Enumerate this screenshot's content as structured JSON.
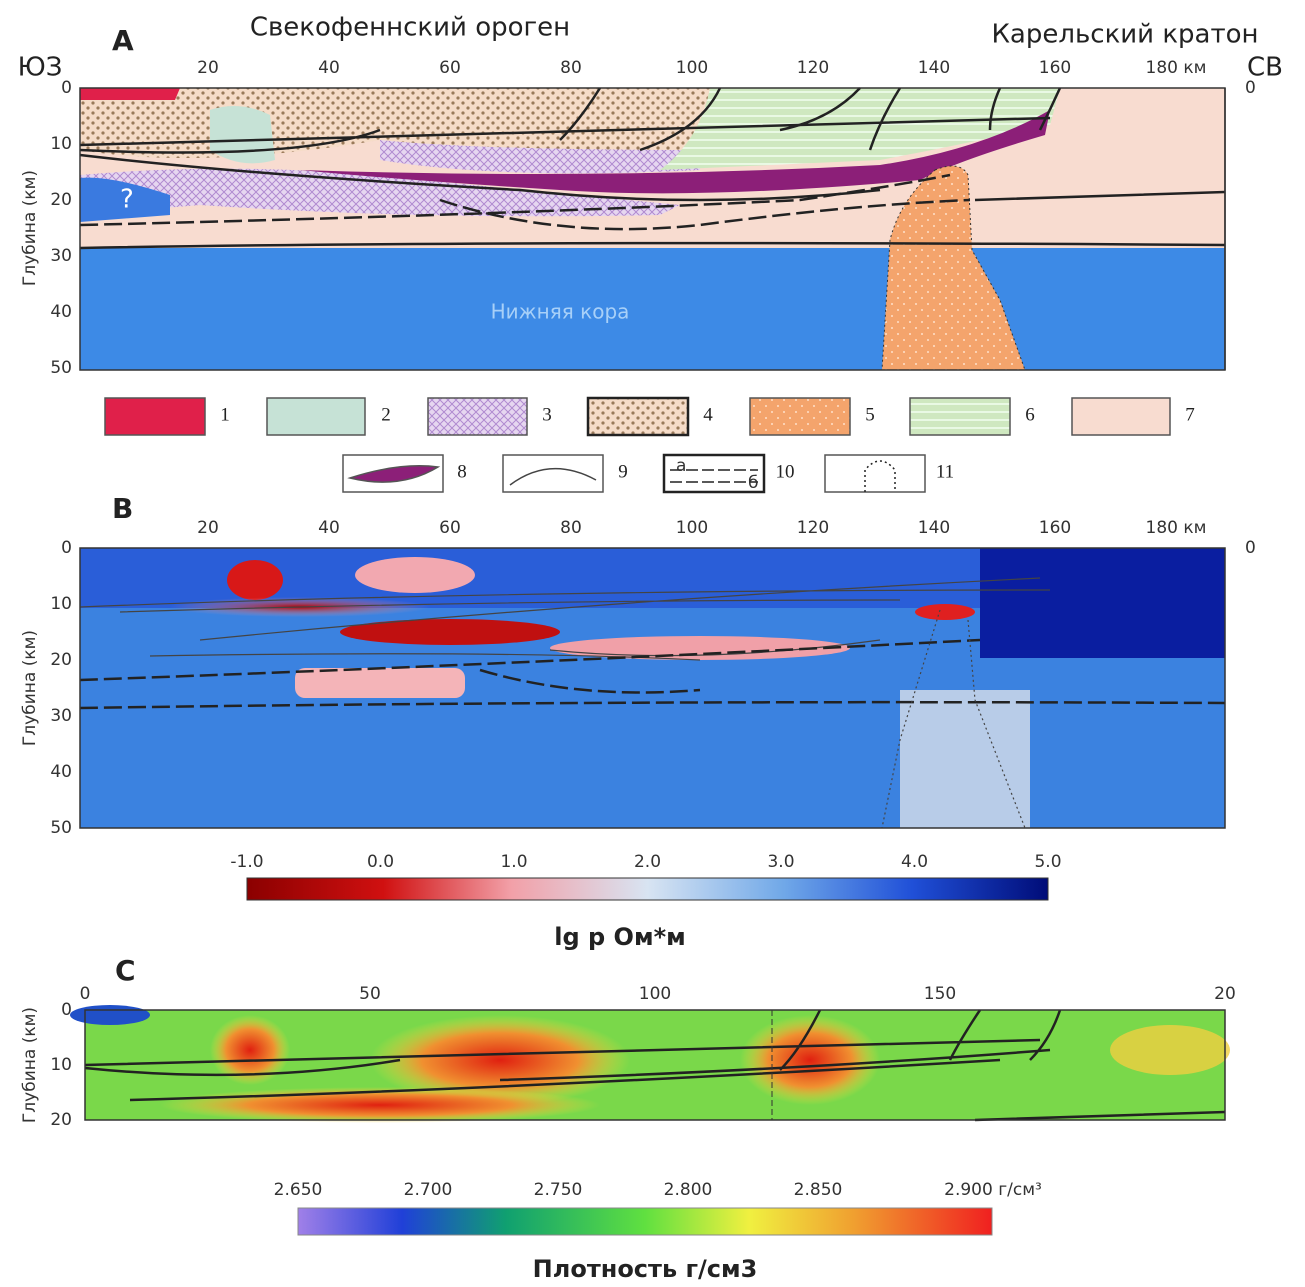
{
  "panel_a": {
    "letter": "A",
    "title_left": "Свекофеннский ороген",
    "title_right": "Карельский кратон",
    "sw": "ЮЗ",
    "ne": "СВ",
    "x_ticks": [
      "20",
      "40",
      "60",
      "80",
      "100",
      "120",
      "140",
      "160",
      "180 км"
    ],
    "y_ticks": [
      "0",
      "10",
      "20",
      "30",
      "40",
      "50"
    ],
    "right_zero": "0",
    "y_label": "Глубина (км)",
    "question": "?",
    "lower_crust": "Нижняя кора",
    "legend": [
      "1",
      "2",
      "3",
      "4",
      "5",
      "6",
      "7",
      "8",
      "9",
      "10",
      "11"
    ],
    "legend_10_marks": [
      "а",
      "б"
    ]
  },
  "panel_b": {
    "letter": "B",
    "x_ticks": [
      "20",
      "40",
      "60",
      "80",
      "100",
      "120",
      "140",
      "160",
      "180 км"
    ],
    "y_ticks": [
      "0",
      "10",
      "20",
      "30",
      "40",
      "50"
    ],
    "right_zero": "0",
    "y_label": "Глубина (км)",
    "colorbar_ticks": [
      "-1.0",
      "0.0",
      "1.0",
      "2.0",
      "3.0",
      "4.0",
      "5.0"
    ],
    "colorbar_label": "lg p Ом*м"
  },
  "panel_c": {
    "letter": "C",
    "x_ticks": [
      "0",
      "50",
      "100",
      "150",
      "20"
    ],
    "y_ticks": [
      "0",
      "10",
      "20"
    ],
    "y_label": "Глубина (км)",
    "colorbar_ticks": [
      "2.650",
      "2.700",
      "2.750",
      "2.800",
      "2.850",
      "2.900 г/см³"
    ],
    "colorbar_label": "Плотность г/см3"
  }
}
